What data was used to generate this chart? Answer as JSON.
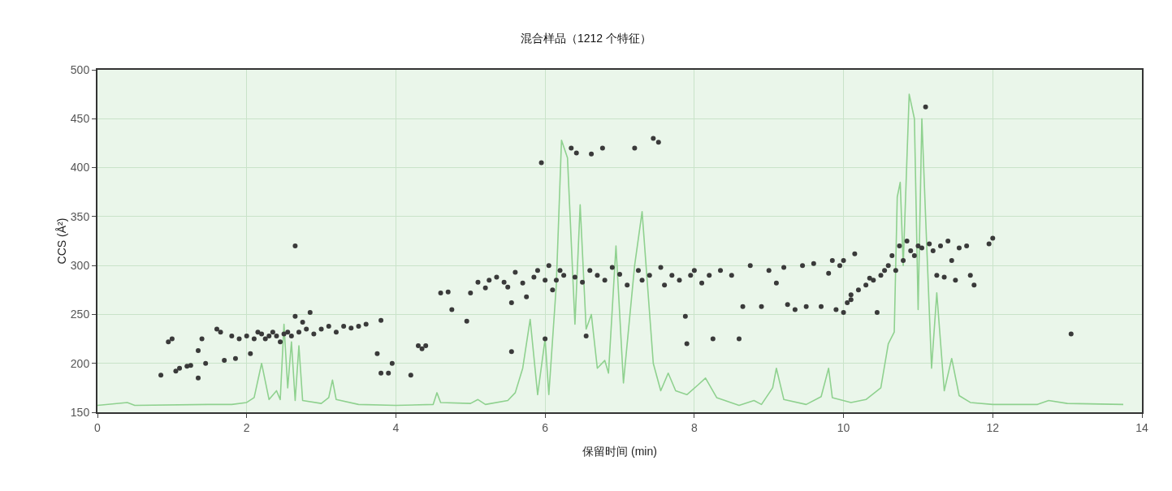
{
  "chart_data": {
    "type": "scatter",
    "title": "混合样品（1212 个特征）",
    "xlabel": "保留时间 (min)",
    "ylabel": "CCS (Å²)",
    "xlim": [
      0,
      14
    ],
    "xticks": [
      0,
      2,
      4,
      6,
      8,
      10,
      12,
      14
    ],
    "ylim": [
      150,
      500
    ],
    "yticks": [
      150,
      200,
      250,
      300,
      350,
      400,
      450,
      500
    ],
    "grid": true,
    "legend": false,
    "series": [
      {
        "type": "line",
        "marker": "none",
        "color": "#8fd18f",
        "x": [
          0,
          0.4,
          0.5,
          1.5,
          1.8,
          2.0,
          2.1,
          2.2,
          2.3,
          2.4,
          2.45,
          2.5,
          2.55,
          2.6,
          2.65,
          2.7,
          2.75,
          3.0,
          3.1,
          3.15,
          3.2,
          3.5,
          4.0,
          4.5,
          4.55,
          4.6,
          5.0,
          5.1,
          5.2,
          5.5,
          5.6,
          5.7,
          5.8,
          5.9,
          6.0,
          6.05,
          6.15,
          6.22,
          6.3,
          6.4,
          6.47,
          6.55,
          6.62,
          6.7,
          6.8,
          6.85,
          6.95,
          7.05,
          7.2,
          7.3,
          7.45,
          7.55,
          7.65,
          7.75,
          7.9,
          8.05,
          8.15,
          8.3,
          8.6,
          8.8,
          8.9,
          9.05,
          9.1,
          9.2,
          9.5,
          9.7,
          9.8,
          9.85,
          10.1,
          10.3,
          10.5,
          10.6,
          10.68,
          10.72,
          10.76,
          10.8,
          10.88,
          10.95,
          11.0,
          11.05,
          11.1,
          11.18,
          11.25,
          11.35,
          11.45,
          11.55,
          11.7,
          12.0,
          12.6,
          12.75,
          13.0,
          13.75
        ],
        "values": [
          157,
          160,
          157,
          158,
          158,
          160,
          165,
          200,
          163,
          172,
          163,
          240,
          175,
          222,
          162,
          218,
          162,
          159,
          165,
          183,
          163,
          158,
          157,
          158,
          170,
          160,
          159,
          163,
          158,
          162,
          170,
          195,
          245,
          168,
          225,
          168,
          280,
          428,
          410,
          240,
          362,
          235,
          250,
          195,
          203,
          190,
          320,
          180,
          300,
          355,
          200,
          172,
          190,
          172,
          168,
          178,
          185,
          165,
          157,
          162,
          158,
          175,
          195,
          163,
          158,
          166,
          195,
          165,
          160,
          163,
          175,
          220,
          232,
          370,
          385,
          300,
          475,
          450,
          255,
          450,
          350,
          195,
          272,
          172,
          205,
          167,
          160,
          158,
          158,
          162,
          159,
          158
        ]
      },
      {
        "type": "scatter",
        "marker": "circle",
        "color": "#3a3a3a",
        "x": [
          0.85,
          0.95,
          1.0,
          1.05,
          1.1,
          1.2,
          1.25,
          1.35,
          1.35,
          1.4,
          1.45,
          1.6,
          1.65,
          1.7,
          1.8,
          1.85,
          1.9,
          2.0,
          2.05,
          2.1,
          2.15,
          2.2,
          2.25,
          2.3,
          2.35,
          2.4,
          2.45,
          2.5,
          2.55,
          2.6,
          2.65,
          2.65,
          2.7,
          2.75,
          2.8,
          2.85,
          2.9,
          3.0,
          3.1,
          3.2,
          3.3,
          3.4,
          3.5,
          3.6,
          3.75,
          3.8,
          3.8,
          3.9,
          3.95,
          4.2,
          4.3,
          4.35,
          4.4,
          4.6,
          4.7,
          4.75,
          4.95,
          5.0,
          5.1,
          5.2,
          5.25,
          5.35,
          5.45,
          5.5,
          5.55,
          5.55,
          5.6,
          5.7,
          5.75,
          5.85,
          5.9,
          5.95,
          6.0,
          6.0,
          6.05,
          6.1,
          6.15,
          6.2,
          6.25,
          6.35,
          6.4,
          6.42,
          6.5,
          6.55,
          6.6,
          6.62,
          6.7,
          6.77,
          6.8,
          6.9,
          7.0,
          7.1,
          7.2,
          7.25,
          7.3,
          7.4,
          7.45,
          7.52,
          7.55,
          7.6,
          7.7,
          7.8,
          7.88,
          7.9,
          7.95,
          8.0,
          8.1,
          8.2,
          8.25,
          8.35,
          8.5,
          8.6,
          8.65,
          8.75,
          8.9,
          9.0,
          9.1,
          9.2,
          9.25,
          9.35,
          9.45,
          9.5,
          9.6,
          9.7,
          9.8,
          9.85,
          9.9,
          9.95,
          10.0,
          10.0,
          10.05,
          10.1,
          10.1,
          10.15,
          10.2,
          10.3,
          10.35,
          10.4,
          10.45,
          10.5,
          10.55,
          10.6,
          10.65,
          10.7,
          10.75,
          10.8,
          10.85,
          10.9,
          10.95,
          11.0,
          11.05,
          11.1,
          11.15,
          11.2,
          11.25,
          11.3,
          11.35,
          11.4,
          11.45,
          11.5,
          11.55,
          11.65,
          11.7,
          11.75,
          11.95,
          12.0,
          13.05
        ],
        "values": [
          188,
          222,
          225,
          192,
          195,
          197,
          198,
          185,
          213,
          225,
          200,
          235,
          232,
          203,
          228,
          205,
          225,
          228,
          210,
          225,
          232,
          230,
          225,
          228,
          232,
          228,
          222,
          230,
          232,
          228,
          320,
          248,
          232,
          242,
          235,
          252,
          230,
          235,
          238,
          232,
          238,
          236,
          238,
          240,
          210,
          244,
          190,
          190,
          200,
          188,
          218,
          215,
          218,
          272,
          273,
          255,
          243,
          272,
          283,
          277,
          285,
          288,
          283,
          278,
          212,
          262,
          293,
          282,
          268,
          288,
          295,
          405,
          225,
          285,
          300,
          275,
          285,
          295,
          290,
          420,
          288,
          415,
          283,
          228,
          295,
          414,
          290,
          420,
          285,
          298,
          291,
          280,
          420,
          295,
          285,
          290,
          430,
          426,
          298,
          280,
          290,
          285,
          248,
          220,
          290,
          295,
          282,
          290,
          225,
          295,
          290,
          225,
          258,
          300,
          258,
          295,
          282,
          298,
          260,
          255,
          300,
          258,
          302,
          258,
          292,
          305,
          255,
          300,
          305,
          252,
          262,
          270,
          265,
          312,
          275,
          280,
          287,
          285,
          252,
          290,
          295,
          300,
          310,
          295,
          320,
          305,
          325,
          315,
          310,
          320,
          318,
          462,
          322,
          315,
          290,
          320,
          288,
          325,
          305,
          285,
          318,
          320,
          290,
          280,
          322,
          328,
          230
        ]
      }
    ]
  }
}
